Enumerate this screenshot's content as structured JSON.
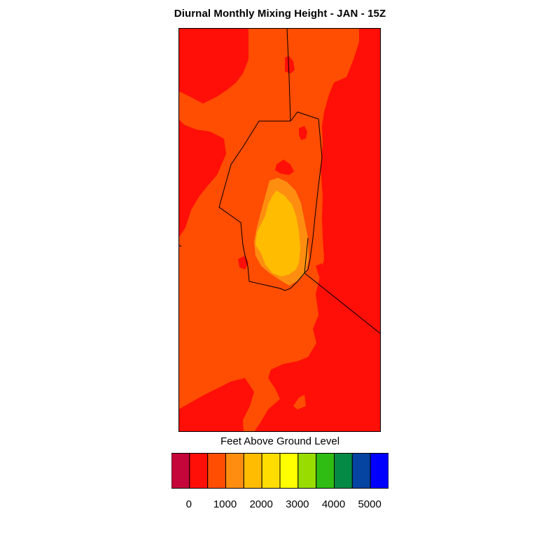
{
  "title": "Diurnal Monthly Mixing Height - JAN - 15Z",
  "colors": {
    "dark_red": "#C4063A",
    "red": "#FF0F07",
    "red_orange": "#FF4D02",
    "orange": "#FF8E10",
    "amber": "#FFBC00",
    "gold": "#FFDD00",
    "yellow": "#FFFF00",
    "yellow_green": "#99DD00",
    "green": "#2FBD14",
    "dark_green": "#058A46",
    "steel_blue": "#0544A0",
    "blue": "#0000FF"
  },
  "legend": {
    "title": "Feet Above Ground Level",
    "colors": [
      "#C4063A",
      "#FF0F07",
      "#FF4D02",
      "#FF8E10",
      "#FFBC00",
      "#FFDD00",
      "#FFFF00",
      "#99DD00",
      "#2FBD14",
      "#058A46",
      "#0544A0",
      "#0000FF"
    ],
    "tick_labels": [
      "0",
      "1000",
      "2000",
      "3000",
      "4000",
      "5000"
    ],
    "tick_values": [
      0,
      1000,
      2000,
      3000,
      4000,
      5000
    ]
  }
}
